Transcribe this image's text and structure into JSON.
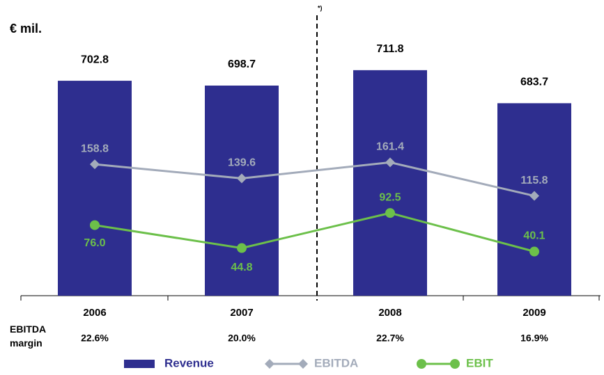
{
  "chart_data": {
    "type": "bar-line",
    "unit_label": "€ mil.",
    "footnote_mark": "*)",
    "categories": [
      "2006",
      "2007",
      "2008",
      "2009"
    ],
    "ylim": [
      520,
      720
    ],
    "y2lim": [
      -20,
      300
    ],
    "series": [
      {
        "name": "Revenue",
        "type": "bar",
        "color": "#2e2e8f",
        "values": [
          702.8,
          698.7,
          711.8,
          683.7
        ]
      },
      {
        "name": "EBITDA",
        "type": "line",
        "axis": "y2",
        "color": "#a3abba",
        "marker": "diamond",
        "values": [
          158.8,
          139.6,
          161.4,
          115.8
        ]
      },
      {
        "name": "EBIT",
        "type": "line",
        "axis": "y2",
        "color": "#6cc04a",
        "marker": "circle",
        "values": [
          76,
          44.8,
          92.5,
          40.1
        ],
        "value_labels": [
          "76.0",
          "44.8",
          "92.5",
          "40.1"
        ]
      }
    ],
    "margin_row": {
      "label": "EBITDA margin",
      "values": [
        "22.6%",
        "20.0%",
        "22.7%",
        "16.9%"
      ]
    }
  }
}
